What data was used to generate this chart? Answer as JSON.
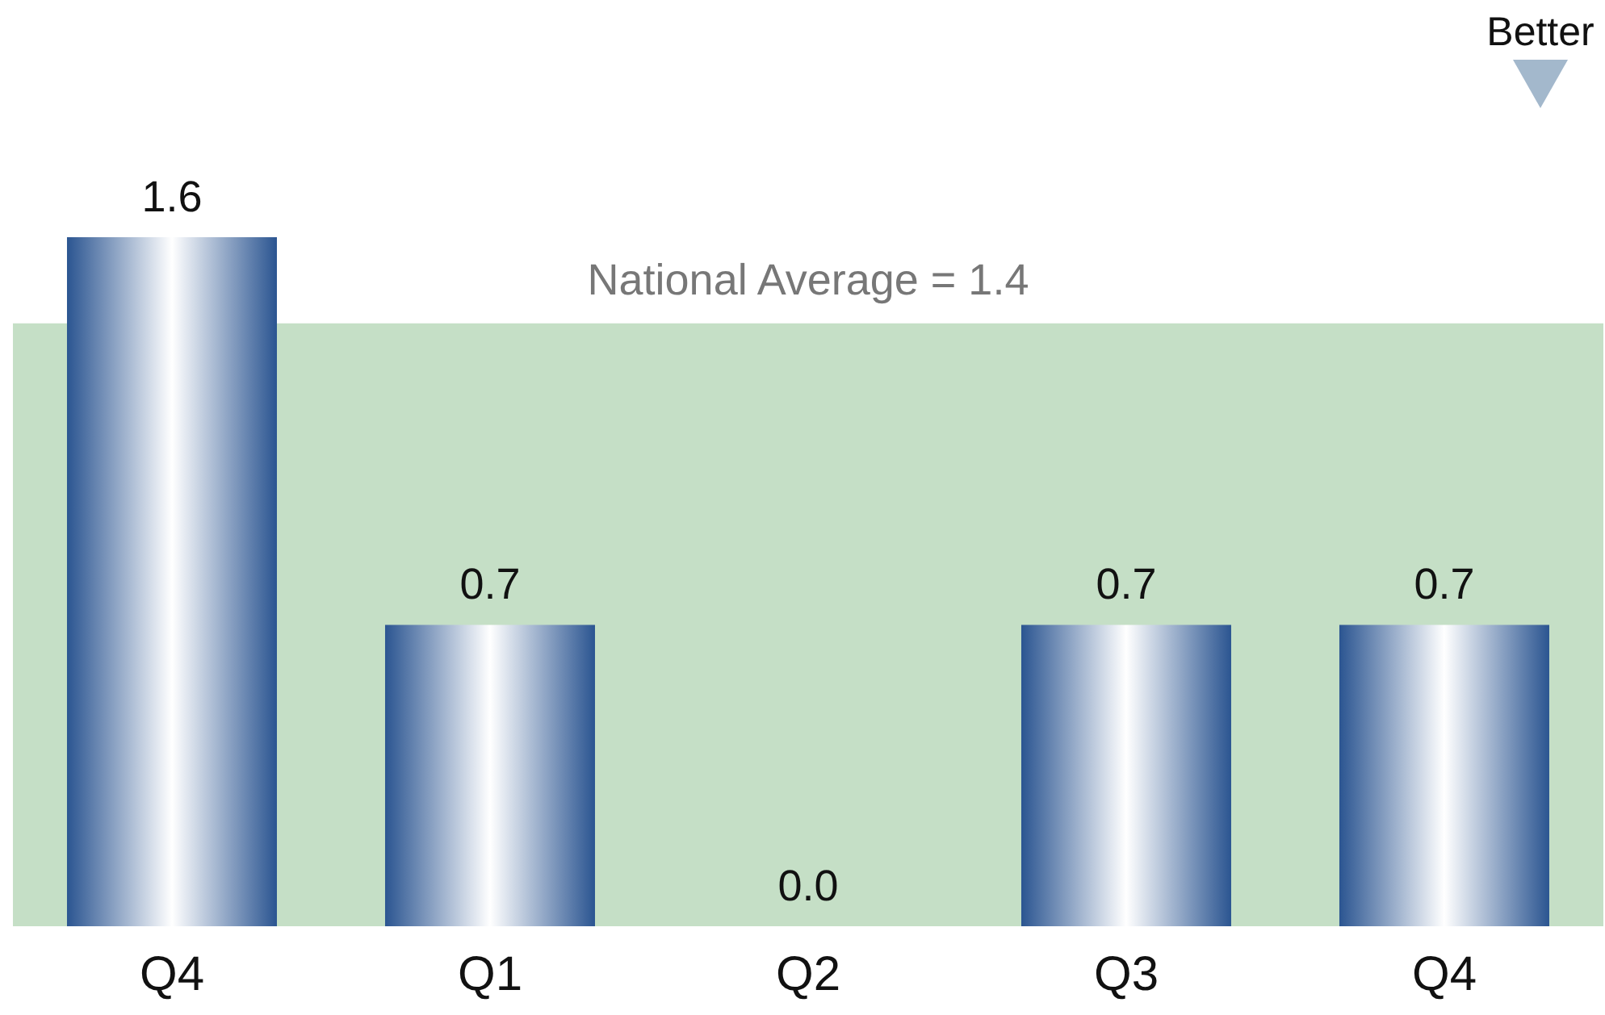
{
  "chart_data": {
    "type": "bar",
    "categories": [
      "Q4",
      "Q1",
      "Q2",
      "Q3",
      "Q4"
    ],
    "values": [
      1.6,
      0.7,
      0.0,
      0.7,
      0.7
    ],
    "color": "#2b5591",
    "value_labels": [
      "1.6",
      "0.7",
      "0.0",
      "0.7",
      "0.7"
    ],
    "bands": [
      {
        "axis": "y",
        "from": 0,
        "to": 1.4,
        "label": "National Average = 1.4",
        "color": "#c5dfc6"
      }
    ],
    "annotations": [
      "Better"
    ]
  }
}
